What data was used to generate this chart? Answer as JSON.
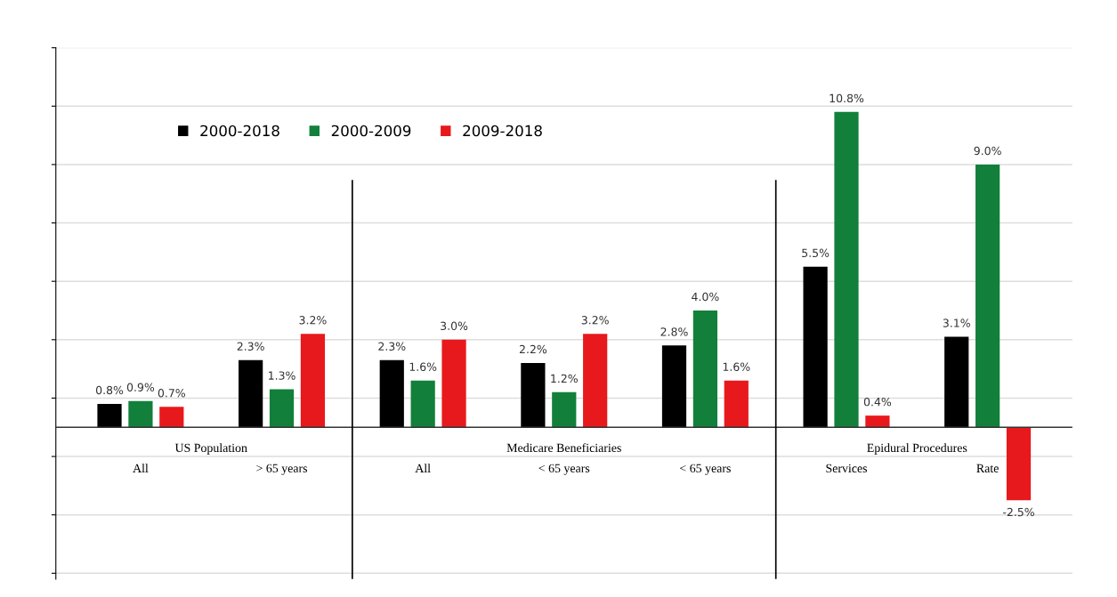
{
  "chart_data": {
    "type": "bar",
    "categories": [
      "All",
      "> 65 years",
      "All",
      "< 65 years",
      "< 65 years",
      "Services",
      "Rate"
    ],
    "series": [
      {
        "name": "2000-2018",
        "color": "#000000",
        "values": [
          0.8,
          2.3,
          2.3,
          2.2,
          2.8,
          5.5,
          3.1
        ],
        "value_labels": [
          "0.8%",
          "2.3%",
          "2.3%",
          "2.2%",
          "2.8%",
          "5.5%",
          "3.1%"
        ]
      },
      {
        "name": "2000-2009",
        "color": "#12803a",
        "values": [
          0.9,
          1.3,
          1.6,
          1.2,
          4.0,
          10.8,
          9.0
        ],
        "value_labels": [
          "0.9%",
          "1.3%",
          "1.6%",
          "1.2%",
          "4.0%",
          "10.8%",
          "9.0%"
        ]
      },
      {
        "name": "2009-2018",
        "color": "#e8191c",
        "values": [
          0.7,
          3.2,
          3.0,
          3.2,
          1.6,
          0.4,
          -2.5
        ],
        "value_labels": [
          "0.7%",
          "3.2%",
          "3.0%",
          "3.2%",
          "1.6%",
          "0.4%",
          "-2.5%"
        ]
      }
    ],
    "annotations": [
      "US Population",
      "Medicare Beneficiaries",
      "Epidural Procedures"
    ],
    "ylim": [
      -5.2,
      13
    ],
    "yticks": [
      {
        "value": -5,
        "label": null
      },
      {
        "value": -3,
        "label": null
      },
      {
        "value": -1,
        "label": null
      },
      {
        "value": 1,
        "label": null
      },
      {
        "value": 3,
        "label": null
      },
      {
        "value": 5,
        "label": null
      },
      {
        "value": 7,
        "label": null
      },
      {
        "value": 9,
        "label": null
      },
      {
        "value": 11,
        "label": null
      },
      {
        "value": 13,
        "label": null
      }
    ],
    "grid": "y",
    "legend": "top"
  }
}
